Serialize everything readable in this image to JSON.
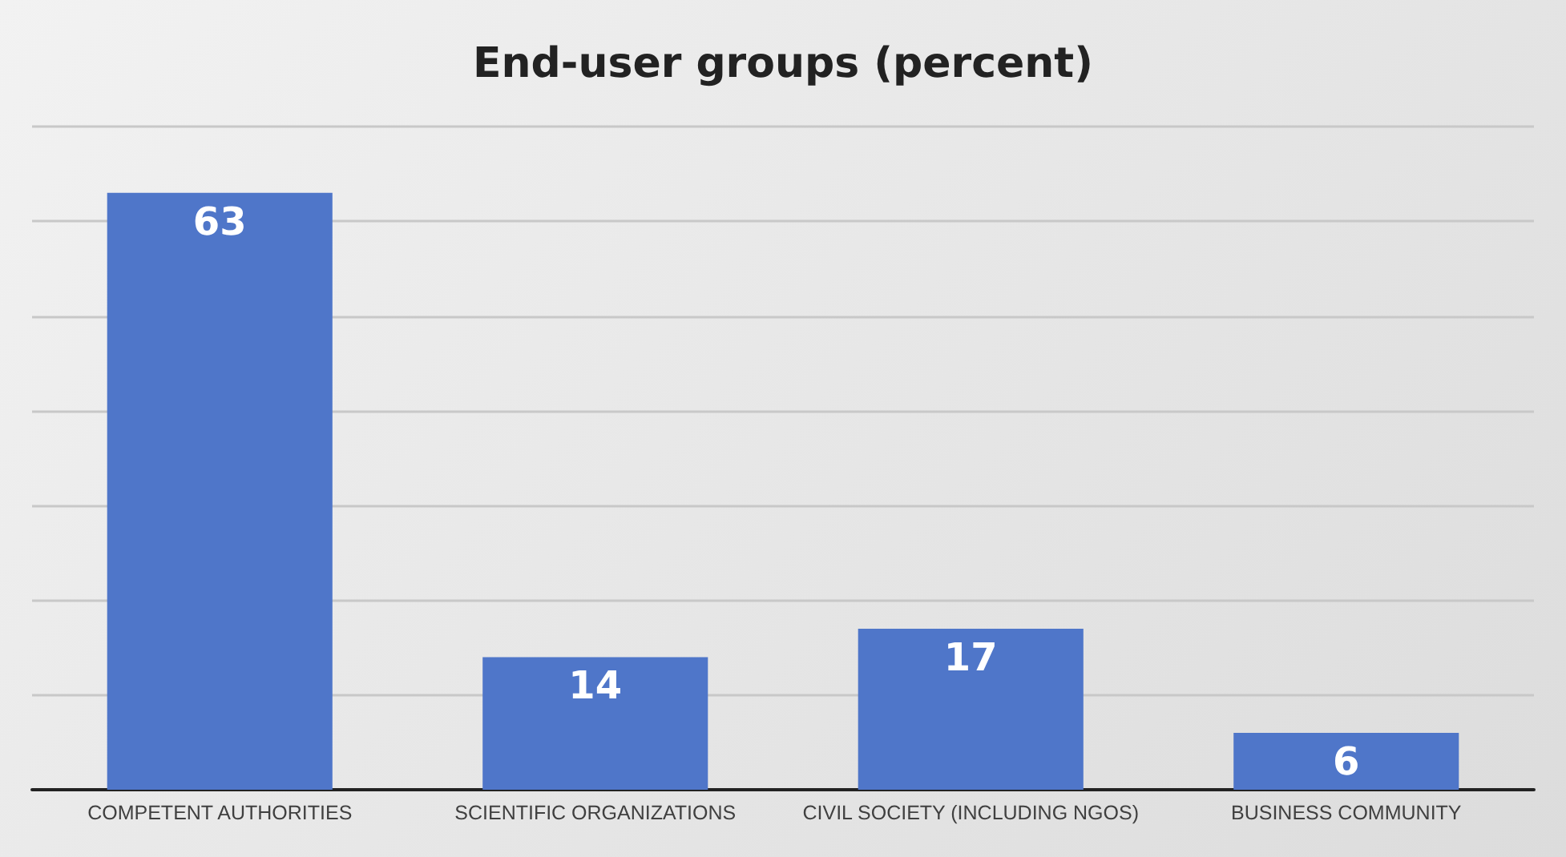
{
  "chart_data": {
    "type": "bar",
    "title": "End-user groups (percent)",
    "categories": [
      "COMPETENT AUTHORITIES",
      "SCIENTIFIC ORGANIZATIONS",
      "CIVIL SOCIETY (INCLUDING NGOS)",
      "BUSINESS COMMUNITY"
    ],
    "values": [
      63,
      14,
      17,
      6
    ],
    "color": "#4f76c9",
    "ylim": [
      0,
      70
    ],
    "yticks": [
      {
        "value": 0,
        "label": null
      },
      {
        "value": 10,
        "label": null
      },
      {
        "value": 20,
        "label": null
      },
      {
        "value": 30,
        "label": null
      },
      {
        "value": 40,
        "label": null
      },
      {
        "value": 50,
        "label": null
      },
      {
        "value": 60,
        "label": null
      },
      {
        "value": 70,
        "label": null
      }
    ],
    "tick_labels": "x",
    "grid": "y",
    "data_labels": true
  }
}
